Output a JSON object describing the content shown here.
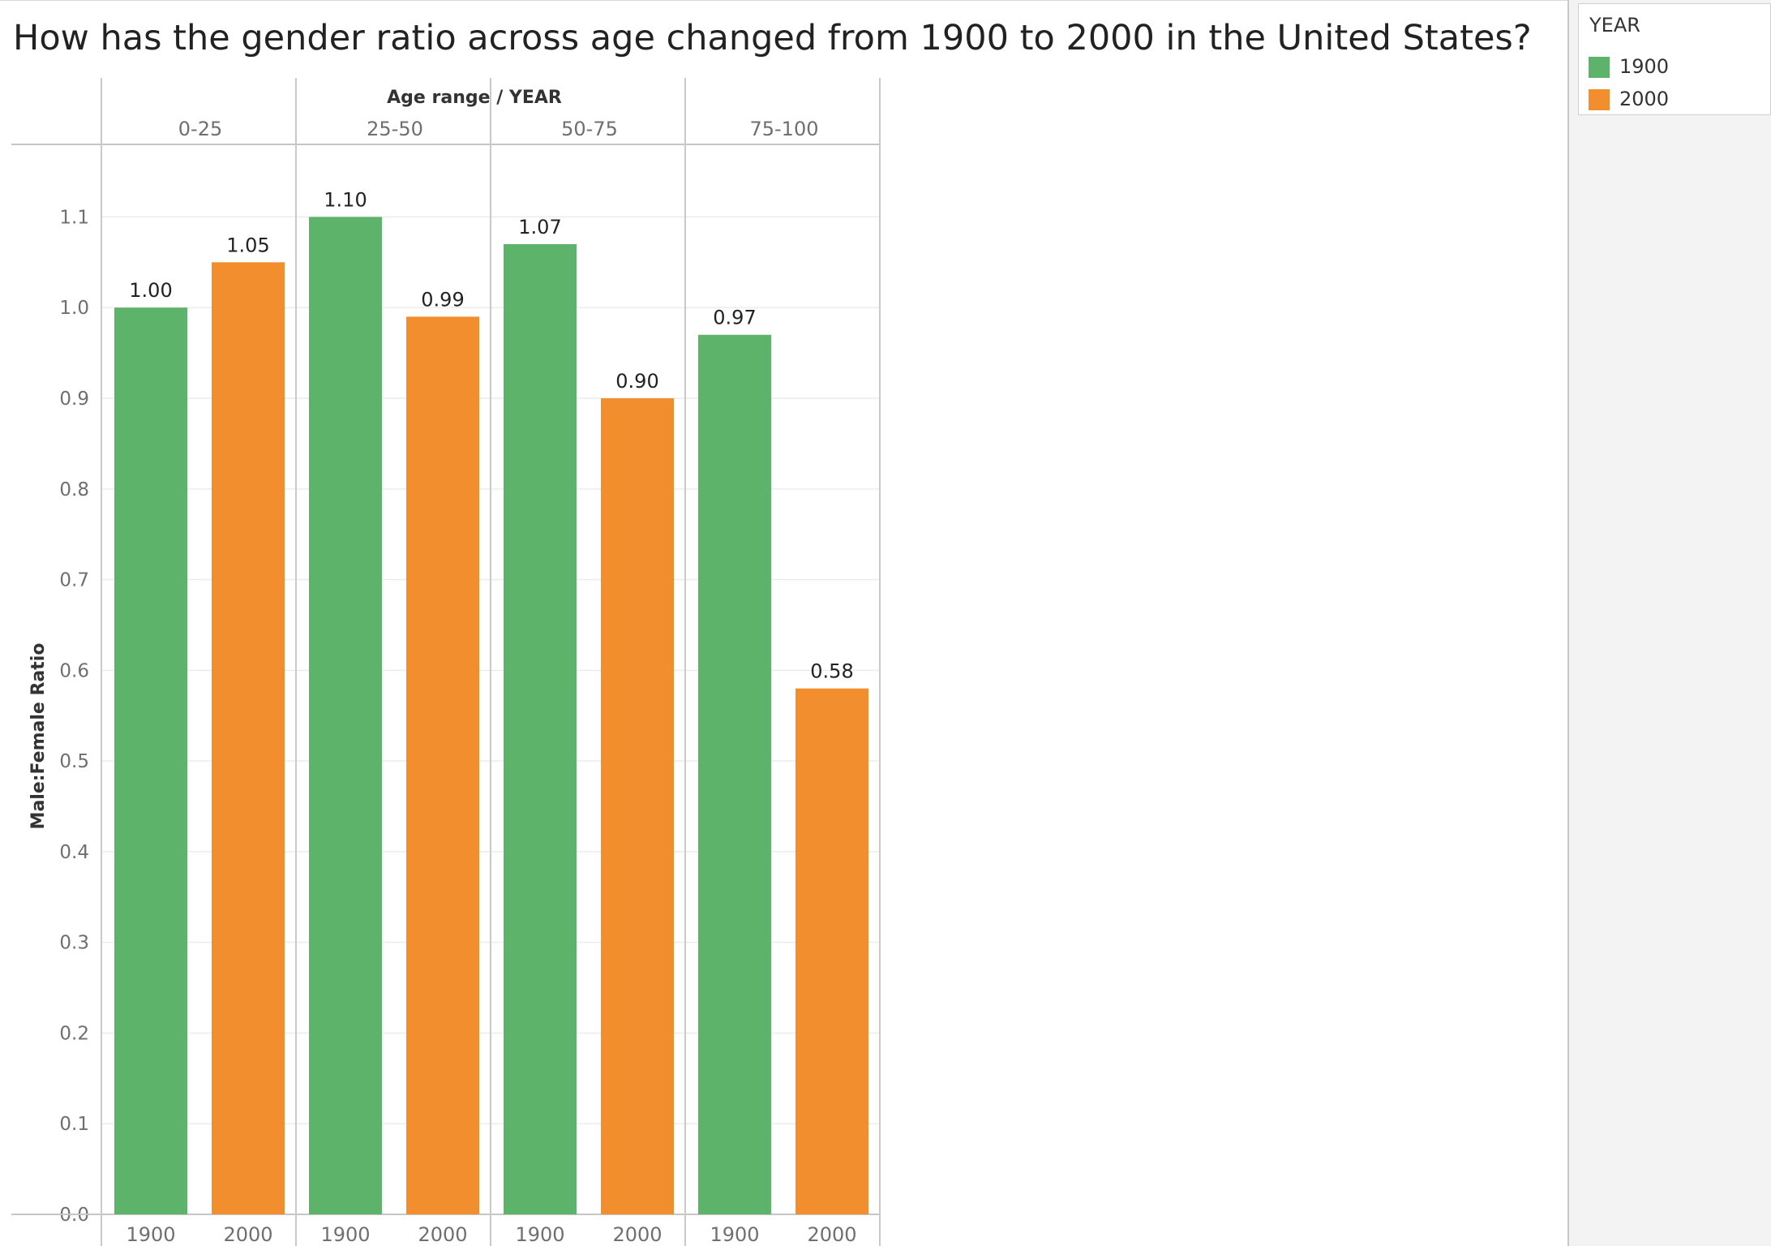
{
  "chart_data": {
    "type": "bar",
    "title": "How has the gender ratio across age changed from 1900 to 2000 in the United States?",
    "column_header_title": "Age range  /  YEAR",
    "ylabel": "Male:Female Ratio",
    "ylim": [
      0,
      1.18
    ],
    "yticks": [
      "0.0",
      "0.1",
      "0.2",
      "0.3",
      "0.4",
      "0.5",
      "0.6",
      "0.7",
      "0.8",
      "0.9",
      "1.0",
      "1.1"
    ],
    "categories": [
      "0-25",
      "25-50",
      "50-75",
      "75-100"
    ],
    "series": [
      {
        "name": "1900",
        "color": "#5DB36A",
        "values": [
          1.0,
          1.1,
          1.07,
          0.97
        ],
        "labels": [
          "1.00",
          "1.10",
          "1.07",
          "0.97"
        ]
      },
      {
        "name": "2000",
        "color": "#F28E2E",
        "values": [
          1.05,
          0.99,
          0.9,
          0.58
        ],
        "labels": [
          "1.05",
          "0.99",
          "0.90",
          "0.58"
        ]
      }
    ],
    "grid": true,
    "legend_position": "top-right"
  },
  "legend": {
    "title": "YEAR",
    "items": [
      {
        "label": "1900",
        "color": "#5DB36A"
      },
      {
        "label": "2000",
        "color": "#F28E2E"
      }
    ]
  }
}
